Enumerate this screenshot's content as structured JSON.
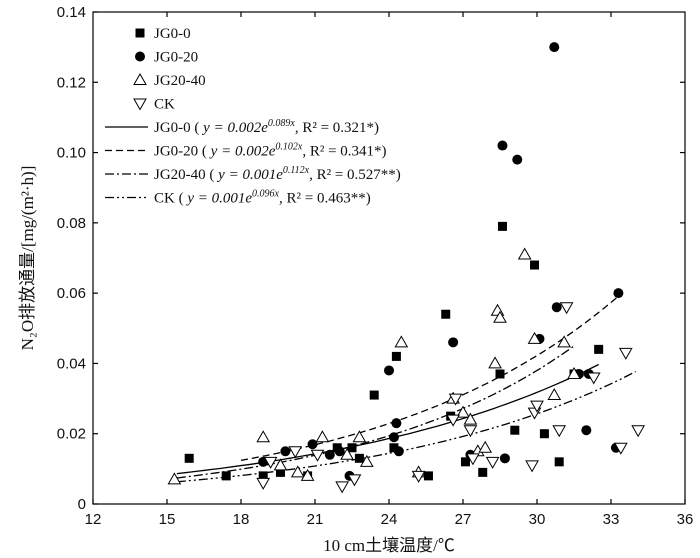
{
  "chart_data": {
    "type": "scatter",
    "xlabel": "10 cm土壤温度/℃",
    "ylabel": "N₂O排放通量/[mg/(m²·h)]",
    "xlim": [
      12,
      36
    ],
    "ylim": [
      0,
      0.14
    ],
    "x_ticks": [
      "12",
      "15",
      "18",
      "21",
      "24",
      "27",
      "30",
      "33",
      "36"
    ],
    "y_ticks": [
      "0",
      "0.02",
      "0.04",
      "0.06",
      "0.08",
      "0.10",
      "0.12",
      "0.14"
    ],
    "legend_position": "top-left",
    "series": [
      {
        "name": "JG0-0",
        "marker": "square-filled",
        "points": [
          [
            15.9,
            0.013
          ],
          [
            17.4,
            0.008
          ],
          [
            18.9,
            0.008
          ],
          [
            19.6,
            0.009
          ],
          [
            21.9,
            0.016
          ],
          [
            22.5,
            0.016
          ],
          [
            22.8,
            0.013
          ],
          [
            23.4,
            0.031
          ],
          [
            24.3,
            0.042
          ],
          [
            24.2,
            0.016
          ],
          [
            25.6,
            0.008
          ],
          [
            26.3,
            0.054
          ],
          [
            26.5,
            0.025
          ],
          [
            27.1,
            0.012
          ],
          [
            27.8,
            0.009
          ],
          [
            28.6,
            0.079
          ],
          [
            28.5,
            0.037
          ],
          [
            29.1,
            0.021
          ],
          [
            29.9,
            0.068
          ],
          [
            30.3,
            0.02
          ],
          [
            30.9,
            0.012
          ],
          [
            31.5,
            0.037
          ],
          [
            32.5,
            0.044
          ],
          [
            20.7,
            0.008
          ]
        ]
      },
      {
        "name": "JG0-20",
        "marker": "circle-filled",
        "points": [
          [
            18.9,
            0.012
          ],
          [
            19.8,
            0.015
          ],
          [
            20.9,
            0.017
          ],
          [
            21.6,
            0.014
          ],
          [
            22.0,
            0.015
          ],
          [
            22.4,
            0.008
          ],
          [
            24.0,
            0.038
          ],
          [
            24.2,
            0.019
          ],
          [
            24.3,
            0.023
          ],
          [
            24.4,
            0.015
          ],
          [
            26.6,
            0.046
          ],
          [
            27.3,
            0.014
          ],
          [
            28.6,
            0.102
          ],
          [
            28.7,
            0.013
          ],
          [
            29.2,
            0.098
          ],
          [
            30.1,
            0.047
          ],
          [
            30.7,
            0.13
          ],
          [
            30.8,
            0.056
          ],
          [
            31.7,
            0.037
          ],
          [
            32.1,
            0.037
          ],
          [
            32.0,
            0.021
          ],
          [
            33.2,
            0.016
          ],
          [
            33.3,
            0.06
          ]
        ]
      },
      {
        "name": "JG20-40",
        "marker": "triangle-up-open",
        "points": [
          [
            15.3,
            0.007
          ],
          [
            18.9,
            0.019
          ],
          [
            19.6,
            0.011
          ],
          [
            20.3,
            0.009
          ],
          [
            20.7,
            0.008
          ],
          [
            21.3,
            0.019
          ],
          [
            22.3,
            0.014
          ],
          [
            22.8,
            0.019
          ],
          [
            23.1,
            0.012
          ],
          [
            24.5,
            0.046
          ],
          [
            25.2,
            0.009
          ],
          [
            26.6,
            0.03
          ],
          [
            27.0,
            0.026
          ],
          [
            27.3,
            0.024
          ],
          [
            27.6,
            0.015
          ],
          [
            27.9,
            0.016
          ],
          [
            28.3,
            0.04
          ],
          [
            28.4,
            0.055
          ],
          [
            28.5,
            0.053
          ],
          [
            29.5,
            0.071
          ],
          [
            29.9,
            0.047
          ],
          [
            30.7,
            0.031
          ],
          [
            31.1,
            0.046
          ],
          [
            31.5,
            0.037
          ]
        ]
      },
      {
        "name": "CK",
        "marker": "triangle-down-open",
        "points": [
          [
            18.9,
            0.006
          ],
          [
            19.2,
            0.012
          ],
          [
            20.2,
            0.015
          ],
          [
            21.1,
            0.014
          ],
          [
            22.1,
            0.005
          ],
          [
            22.6,
            0.007
          ],
          [
            25.2,
            0.008
          ],
          [
            26.6,
            0.024
          ],
          [
            26.7,
            0.03
          ],
          [
            27.3,
            0.021
          ],
          [
            27.4,
            0.013
          ],
          [
            28.2,
            0.012
          ],
          [
            29.8,
            0.011
          ],
          [
            29.9,
            0.026
          ],
          [
            30.0,
            0.028
          ],
          [
            30.9,
            0.021
          ],
          [
            31.2,
            0.056
          ],
          [
            32.3,
            0.036
          ],
          [
            33.4,
            0.016
          ],
          [
            33.6,
            0.043
          ],
          [
            34.1,
            0.021
          ]
        ]
      }
    ],
    "fits": [
      {
        "name": "JG0-0",
        "style": "solid",
        "label_series": "JG0-0",
        "label_eq": "y = 0.002e",
        "label_exp": "0.089x",
        "label_r2": ", R² = 0.321*)",
        "a": 0.0022,
        "b": 0.089,
        "x_range": [
          15.4,
          32.5
        ]
      },
      {
        "name": "JG0-20",
        "style": "dash",
        "label_series": "JG0-20",
        "label_eq": "y = 0.002e",
        "label_exp": "0.102x",
        "label_r2": ", R² = 0.341*)",
        "a": 0.00198,
        "b": 0.102,
        "x_range": [
          18.0,
          33.3
        ]
      },
      {
        "name": "JG20-40",
        "style": "dashdot",
        "label_series": "JG20-40",
        "label_eq": "y = 0.001e",
        "label_exp": "0.112x",
        "label_r2": ", R² = 0.527**)",
        "a": 0.00132,
        "b": 0.112,
        "x_range": [
          15.4,
          31.5
        ]
      },
      {
        "name": "CK",
        "style": "dashdotdot",
        "label_series": "CK",
        "label_eq": "y = 0.001e",
        "label_exp": "0.096x",
        "label_r2": ", R² = 0.463**)",
        "a": 0.00144,
        "b": 0.096,
        "x_range": [
          15.4,
          34.0
        ]
      }
    ]
  }
}
